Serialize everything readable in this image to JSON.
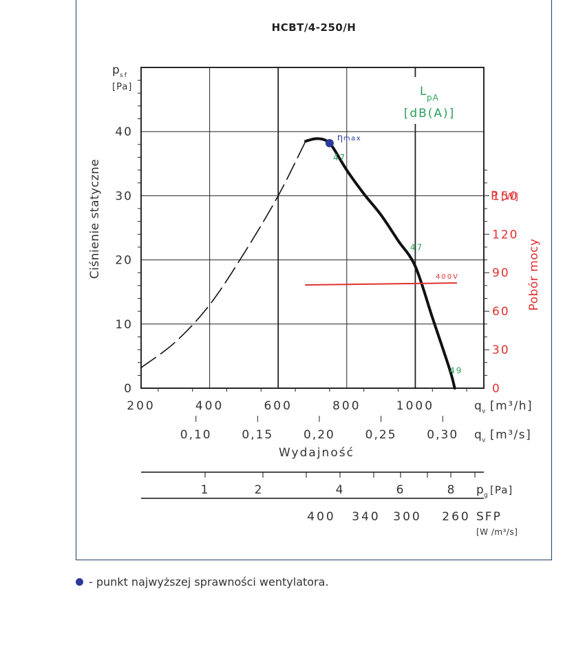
{
  "chart_data": {
    "type": "line",
    "title": "HCBT/4-250/H",
    "ylabel": "Ciśnienie statyczne",
    "ylabel_symbol": "p",
    "ylabel_sub": "sf",
    "ylabel_unit": "[Pa]",
    "xlabel": "Wydajność",
    "x_unit_label": "q",
    "x_unit_sub": "v",
    "x_unit": "[m³/h]",
    "x2_unit": "[m³/s]",
    "y2label": "Pobór mocy",
    "y2_symbol": "P",
    "y2_unit": "[W]",
    "lpa_symbol": "L",
    "lpa_sub": "pA",
    "lpa_unit": "[dB(A)]",
    "xlim": [
      200,
      1200
    ],
    "ylim": [
      0,
      50
    ],
    "y2lim": [
      0,
      250
    ],
    "x_ticks": [
      "200",
      "400",
      "600",
      "800",
      "1000"
    ],
    "y_ticks": [
      "0",
      "10",
      "20",
      "30",
      "40"
    ],
    "y2_ticks": [
      "0",
      "30",
      "60",
      "90",
      "120",
      "150"
    ],
    "x2_ticks": [
      "0,10",
      "0,15",
      "0,20",
      "0,25",
      "0,30"
    ],
    "x2_values": [
      0.1,
      0.15,
      0.2,
      0.25,
      0.3
    ],
    "series": [
      {
        "color": "#111111",
        "style": "dashed",
        "x": [
          200,
          300,
          400,
          500,
          600,
          680
        ],
        "y": [
          3.2,
          7.2,
          13,
          21,
          30,
          38.5
        ]
      },
      {
        "color": "#111111",
        "style": "solid",
        "x": [
          680,
          710,
          740,
          760,
          800,
          850,
          900,
          950,
          1000,
          1050,
          1100,
          1115
        ],
        "y": [
          38.5,
          38.9,
          38.6,
          37.5,
          34,
          30.3,
          27,
          23,
          19,
          11,
          3,
          0
        ]
      },
      {
        "name": "400V",
        "axis": "right",
        "color": "#e03030",
        "style": "solid",
        "x": [
          680,
          1120
        ],
        "y": [
          80.5,
          82
        ]
      }
    ],
    "eta_max": {
      "label": "η",
      "label_sub": "max",
      "x": 750,
      "y": 38.2,
      "color": "#2a3b9a"
    },
    "noise_labels": [
      {
        "text": "47",
        "x": 770,
        "y": 35.5
      },
      {
        "text": "47",
        "x": 995,
        "y": 21.5
      },
      {
        "text": "49",
        "x": 1110,
        "y": 2.3
      }
    ],
    "pg_scale": {
      "symbol": "p",
      "sub": "g",
      "unit": "[Pa]",
      "ticks": [
        "1",
        "2",
        "4",
        "6",
        "8"
      ],
      "values": [
        1,
        2,
        4,
        6,
        8
      ]
    },
    "sfp_scale": {
      "label": "SFP",
      "unit": "[W /m³/s]",
      "ticks": [
        "400",
        "340",
        "300",
        "260"
      ]
    },
    "grid": true
  },
  "footnote": {
    "text": "- punkt najwyższej sprawności wentylatora."
  }
}
